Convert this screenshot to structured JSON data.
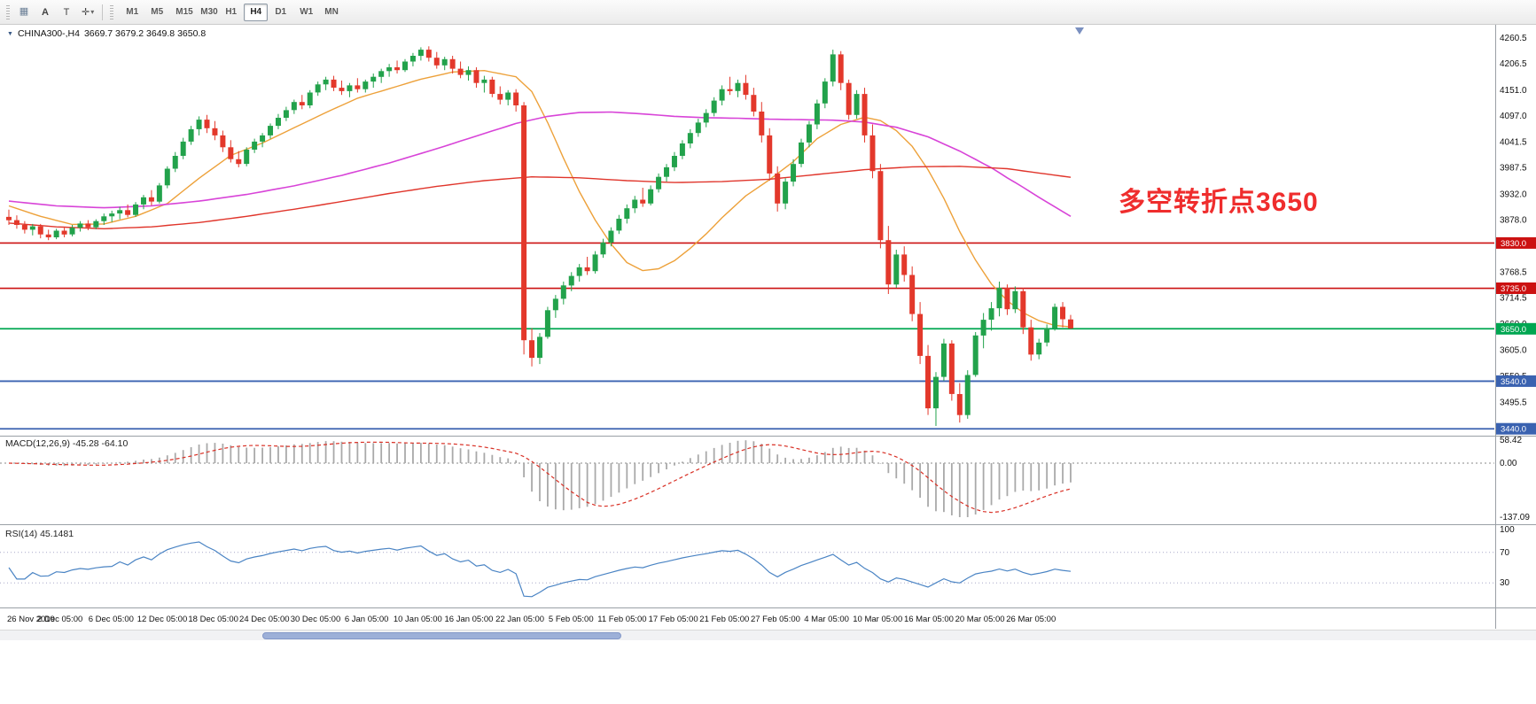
{
  "toolbar": {
    "tools": [
      {
        "label": "A"
      },
      {
        "label": "T"
      }
    ],
    "timeframes": [
      "M1",
      "M5",
      "M15",
      "M30",
      "H1",
      "H4",
      "D1",
      "W1",
      "MN"
    ],
    "active_timeframe": "H4"
  },
  "icons": {
    "triangle_down": "▼",
    "caret_down": "▾",
    "grid": "▦",
    "crosshair": "✛"
  },
  "chart": {
    "symbol": "CHINA300-,H4",
    "ohlc_text": "3669.7 3679.2 3649.8 3650.8",
    "annotation": {
      "text": "多空转折点3650",
      "color": "#ef2d2d"
    }
  },
  "indicators": {
    "macd": {
      "label": "MACD(12,26,9) -45.28 -64.10",
      "params": [
        12,
        26,
        9
      ],
      "macd_value": -45.28,
      "signal_value": -64.1,
      "axis_labels": [
        "58.42",
        "0.00",
        "-137.09"
      ],
      "axis_values": [
        58.42,
        0,
        -137.09
      ],
      "histogram_color": "#a9a9a9",
      "signal_color": "#d93025"
    },
    "rsi": {
      "label": "RSI(14) 45.1481",
      "period": 14,
      "value": 45.1481,
      "levels": [
        70,
        30
      ],
      "axis_labels": [
        "100",
        "70",
        "30"
      ],
      "axis_values": [
        100,
        70,
        30
      ],
      "line_color": "#4a84c4"
    }
  },
  "chart_data": {
    "type": "candlestick",
    "title": "CHINA300-,H4",
    "symbol": "CHINA300-,H4",
    "timeframe": "H4",
    "y_range": [
      3433,
      4277
    ],
    "y_ticks": [
      4260.5,
      4206.5,
      4151.0,
      4097.0,
      4041.5,
      3987.5,
      3932.0,
      3878.0,
      3824.0,
      3768.5,
      3714.5,
      3660.0,
      3605.0,
      3550.5,
      3495.5,
      3441.0
    ],
    "x_labels": [
      "26 Nov 2019",
      "2 Dec 05:00",
      "6 Dec 05:00",
      "12 Dec 05:00",
      "18 Dec 05:00",
      "24 Dec 05:00",
      "30 Dec 05:00",
      "6 Jan 05:00",
      "10 Jan 05:00",
      "16 Jan 05:00",
      "22 Jan 05:00",
      "5 Feb 05:00",
      "11 Feb 05:00",
      "17 Feb 05:00",
      "21 Feb 05:00",
      "27 Feb 05:00",
      "4 Mar 05:00",
      "10 Mar 05:00",
      "16 Mar 05:00",
      "20 Mar 05:00",
      "26 Mar 05:00"
    ],
    "x_label_step_candles": 6.45,
    "up_color": "#22a24b",
    "down_color": "#e3382b",
    "candles": [
      [
        3885,
        3900,
        3868,
        3878
      ],
      [
        3878,
        3888,
        3860,
        3868
      ],
      [
        3868,
        3876,
        3850,
        3858
      ],
      [
        3858,
        3870,
        3846,
        3865
      ],
      [
        3865,
        3870,
        3840,
        3848
      ],
      [
        3848,
        3858,
        3836,
        3842
      ],
      [
        3842,
        3860,
        3838,
        3856
      ],
      [
        3856,
        3862,
        3842,
        3848
      ],
      [
        3848,
        3868,
        3844,
        3862
      ],
      [
        3862,
        3876,
        3854,
        3871
      ],
      [
        3871,
        3878,
        3857,
        3863
      ],
      [
        3863,
        3880,
        3859,
        3876
      ],
      [
        3876,
        3892,
        3868,
        3886
      ],
      [
        3886,
        3898,
        3874,
        3892
      ],
      [
        3892,
        3906,
        3880,
        3899
      ],
      [
        3899,
        3911,
        3884,
        3889
      ],
      [
        3889,
        3916,
        3885,
        3911
      ],
      [
        3911,
        3931,
        3901,
        3926
      ],
      [
        3926,
        3941,
        3909,
        3917
      ],
      [
        3917,
        3956,
        3913,
        3951
      ],
      [
        3951,
        3991,
        3945,
        3986
      ],
      [
        3986,
        4021,
        3979,
        4013
      ],
      [
        4013,
        4051,
        4006,
        4043
      ],
      [
        4043,
        4076,
        4036,
        4069
      ],
      [
        4069,
        4096,
        4056,
        4089
      ],
      [
        4089,
        4099,
        4061,
        4071
      ],
      [
        4071,
        4086,
        4046,
        4056
      ],
      [
        4056,
        4066,
        4021,
        4031
      ],
      [
        4031,
        4046,
        3999,
        4006
      ],
      [
        4006,
        4023,
        3989,
        3996
      ],
      [
        3996,
        4031,
        3991,
        4026
      ],
      [
        4026,
        4049,
        4019,
        4043
      ],
      [
        4043,
        4061,
        4031,
        4056
      ],
      [
        4056,
        4081,
        4049,
        4076
      ],
      [
        4076,
        4101,
        4069,
        4093
      ],
      [
        4093,
        4116,
        4086,
        4109
      ],
      [
        4109,
        4131,
        4101,
        4126
      ],
      [
        4126,
        4141,
        4111,
        4119
      ],
      [
        4119,
        4151,
        4113,
        4146
      ],
      [
        4146,
        4169,
        4139,
        4163
      ],
      [
        4163,
        4179,
        4151,
        4173
      ],
      [
        4173,
        4181,
        4149,
        4156
      ],
      [
        4156,
        4171,
        4141,
        4149
      ],
      [
        4149,
        4166,
        4136,
        4161
      ],
      [
        4161,
        4176,
        4146,
        4153
      ],
      [
        4153,
        4173,
        4146,
        4169
      ],
      [
        4169,
        4186,
        4156,
        4179
      ],
      [
        4179,
        4196,
        4166,
        4191
      ],
      [
        4191,
        4206,
        4179,
        4199
      ],
      [
        4199,
        4213,
        4186,
        4193
      ],
      [
        4193,
        4216,
        4189,
        4211
      ],
      [
        4211,
        4229,
        4201,
        4223
      ],
      [
        4223,
        4241,
        4213,
        4236
      ],
      [
        4236,
        4243,
        4211,
        4219
      ],
      [
        4219,
        4231,
        4196,
        4203
      ],
      [
        4203,
        4221,
        4193,
        4216
      ],
      [
        4216,
        4223,
        4186,
        4196
      ],
      [
        4196,
        4211,
        4176,
        4183
      ],
      [
        4183,
        4201,
        4171,
        4193
      ],
      [
        4193,
        4199,
        4156,
        4166
      ],
      [
        4166,
        4181,
        4146,
        4173
      ],
      [
        4173,
        4179,
        4136,
        4143
      ],
      [
        4143,
        4159,
        4121,
        4131
      ],
      [
        4131,
        4151,
        4119,
        4146
      ],
      [
        4146,
        4153,
        4106,
        4119
      ],
      [
        4119,
        4126,
        3596,
        3626
      ],
      [
        3626,
        3651,
        3571,
        3589
      ],
      [
        3589,
        3641,
        3576,
        3633
      ],
      [
        3633,
        3696,
        3629,
        3689
      ],
      [
        3689,
        3721,
        3673,
        3713
      ],
      [
        3713,
        3749,
        3701,
        3741
      ],
      [
        3741,
        3769,
        3729,
        3761
      ],
      [
        3761,
        3786,
        3749,
        3779
      ],
      [
        3779,
        3801,
        3763,
        3771
      ],
      [
        3771,
        3813,
        3766,
        3806
      ],
      [
        3806,
        3839,
        3799,
        3831
      ],
      [
        3831,
        3863,
        3823,
        3856
      ],
      [
        3856,
        3889,
        3849,
        3881
      ],
      [
        3881,
        3911,
        3871,
        3903
      ],
      [
        3903,
        3929,
        3893,
        3921
      ],
      [
        3921,
        3946,
        3906,
        3913
      ],
      [
        3913,
        3951,
        3909,
        3943
      ],
      [
        3943,
        3976,
        3936,
        3969
      ],
      [
        3969,
        3996,
        3959,
        3989
      ],
      [
        3989,
        4021,
        3981,
        4013
      ],
      [
        4013,
        4046,
        4006,
        4039
      ],
      [
        4039,
        4069,
        4029,
        4061
      ],
      [
        4061,
        4091,
        4053,
        4083
      ],
      [
        4083,
        4111,
        4073,
        4103
      ],
      [
        4103,
        4136,
        4096,
        4129
      ],
      [
        4129,
        4161,
        4119,
        4153
      ],
      [
        4153,
        4179,
        4141,
        4149
      ],
      [
        4149,
        4173,
        4136,
        4166
      ],
      [
        4166,
        4183,
        4131,
        4141
      ],
      [
        4141,
        4156,
        4096,
        4106
      ],
      [
        4106,
        4126,
        4041,
        4056
      ],
      [
        4056,
        4071,
        3961,
        3976
      ],
      [
        3976,
        3991,
        3896,
        3913
      ],
      [
        3913,
        3966,
        3901,
        3959
      ],
      [
        3959,
        4006,
        3949,
        3996
      ],
      [
        3996,
        4049,
        3989,
        4041
      ],
      [
        4041,
        4086,
        4031,
        4079
      ],
      [
        4079,
        4131,
        4069,
        4123
      ],
      [
        4123,
        4176,
        4113,
        4169
      ],
      [
        4169,
        4236,
        4159,
        4226
      ],
      [
        4226,
        4233,
        4151,
        4166
      ],
      [
        4166,
        4173,
        4089,
        4099
      ],
      [
        4099,
        4151,
        4091,
        4143
      ],
      [
        4143,
        4156,
        4041,
        4056
      ],
      [
        4056,
        4079,
        3966,
        3981
      ],
      [
        3981,
        3996,
        3819,
        3836
      ],
      [
        3836,
        3866,
        3723,
        3743
      ],
      [
        3743,
        3816,
        3736,
        3806
      ],
      [
        3806,
        3823,
        3749,
        3763
      ],
      [
        3763,
        3781,
        3666,
        3681
      ],
      [
        3681,
        3706,
        3576,
        3593
      ],
      [
        3593,
        3616,
        3469,
        3483
      ],
      [
        3483,
        3559,
        3446,
        3549
      ],
      [
        3549,
        3629,
        3541,
        3619
      ],
      [
        3619,
        3626,
        3499,
        3513
      ],
      [
        3513,
        3536,
        3453,
        3469
      ],
      [
        3469,
        3563,
        3461,
        3553
      ],
      [
        3553,
        3643,
        3549,
        3636
      ],
      [
        3636,
        3683,
        3609,
        3669
      ],
      [
        3669,
        3706,
        3646,
        3693
      ],
      [
        3693,
        3749,
        3676,
        3736
      ],
      [
        3736,
        3743,
        3679,
        3691
      ],
      [
        3691,
        3739,
        3683,
        3729
      ],
      [
        3729,
        3736,
        3639,
        3653
      ],
      [
        3653,
        3669,
        3583,
        3596
      ],
      [
        3596,
        3629,
        3586,
        3621
      ],
      [
        3621,
        3659,
        3613,
        3651
      ],
      [
        3651,
        3703,
        3646,
        3696
      ],
      [
        3696,
        3706,
        3653,
        3670
      ],
      [
        3669.7,
        3679.2,
        3649.8,
        3650.8
      ]
    ],
    "moving_averages": [
      {
        "name": "fast-orange",
        "color": "#eda13a",
        "width": 1.4,
        "anchors": [
          [
            0,
            3908
          ],
          [
            4,
            3886
          ],
          [
            8,
            3869
          ],
          [
            12,
            3870
          ],
          [
            16,
            3886
          ],
          [
            20,
            3913
          ],
          [
            24,
            3966
          ],
          [
            28,
            4014
          ],
          [
            32,
            4040
          ],
          [
            36,
            4072
          ],
          [
            40,
            4104
          ],
          [
            44,
            4134
          ],
          [
            48,
            4154
          ],
          [
            52,
            4174
          ],
          [
            56,
            4189
          ],
          [
            60,
            4192
          ],
          [
            64,
            4179
          ],
          [
            66,
            4148
          ],
          [
            68,
            4083
          ],
          [
            70,
            4008
          ],
          [
            72,
            3938
          ],
          [
            74,
            3878
          ],
          [
            76,
            3828
          ],
          [
            78,
            3789
          ],
          [
            80,
            3772
          ],
          [
            82,
            3776
          ],
          [
            84,
            3793
          ],
          [
            86,
            3819
          ],
          [
            88,
            3849
          ],
          [
            90,
            3883
          ],
          [
            93,
            3929
          ],
          [
            96,
            3963
          ],
          [
            99,
            4001
          ],
          [
            102,
            4049
          ],
          [
            105,
            4079
          ],
          [
            108,
            4094
          ],
          [
            110,
            4087
          ],
          [
            112,
            4066
          ],
          [
            114,
            4033
          ],
          [
            116,
            3984
          ],
          [
            118,
            3924
          ],
          [
            120,
            3854
          ],
          [
            122,
            3794
          ],
          [
            124,
            3744
          ],
          [
            126,
            3709
          ],
          [
            128,
            3684
          ],
          [
            130,
            3667
          ],
          [
            132,
            3657
          ],
          [
            134,
            3654
          ]
        ]
      },
      {
        "name": "slow-magenta",
        "color": "#d844d8",
        "width": 1.6,
        "anchors": [
          [
            0,
            3918
          ],
          [
            6,
            3908
          ],
          [
            12,
            3904
          ],
          [
            18,
            3908
          ],
          [
            24,
            3918
          ],
          [
            30,
            3932
          ],
          [
            36,
            3950
          ],
          [
            42,
            3972
          ],
          [
            48,
            3998
          ],
          [
            54,
            4028
          ],
          [
            60,
            4060
          ],
          [
            64,
            4081
          ],
          [
            68,
            4096
          ],
          [
            72,
            4104
          ],
          [
            76,
            4105
          ],
          [
            80,
            4101
          ],
          [
            84,
            4096
          ],
          [
            88,
            4093
          ],
          [
            92,
            4092
          ],
          [
            96,
            4090
          ],
          [
            100,
            4089
          ],
          [
            104,
            4088
          ],
          [
            108,
            4084
          ],
          [
            112,
            4073
          ],
          [
            116,
            4053
          ],
          [
            120,
            4023
          ],
          [
            124,
            3988
          ],
          [
            126,
            3967
          ],
          [
            128,
            3947
          ],
          [
            130,
            3926
          ],
          [
            132,
            3906
          ],
          [
            134,
            3886
          ]
        ]
      },
      {
        "name": "long-red",
        "color": "#e0352b",
        "width": 1.4,
        "anchors": [
          [
            0,
            3872
          ],
          [
            6,
            3864
          ],
          [
            12,
            3860
          ],
          [
            18,
            3864
          ],
          [
            24,
            3873
          ],
          [
            30,
            3886
          ],
          [
            36,
            3901
          ],
          [
            42,
            3917
          ],
          [
            48,
            3934
          ],
          [
            54,
            3949
          ],
          [
            60,
            3961
          ],
          [
            66,
            3969
          ],
          [
            72,
            3967
          ],
          [
            78,
            3961
          ],
          [
            84,
            3957
          ],
          [
            90,
            3959
          ],
          [
            96,
            3964
          ],
          [
            102,
            3974
          ],
          [
            108,
            3984
          ],
          [
            114,
            3990
          ],
          [
            120,
            3991
          ],
          [
            126,
            3986
          ],
          [
            130,
            3977
          ],
          [
            134,
            3968
          ]
        ]
      }
    ],
    "levels": [
      {
        "label": "3830.0",
        "value": 3830,
        "color": "#cc1111",
        "width": 1.6
      },
      {
        "label": "3735.0",
        "value": 3735,
        "color": "#cc1111",
        "width": 1.6
      },
      {
        "label": "3650.0",
        "value": 3650,
        "color": "#00a651",
        "width": 1.8
      },
      {
        "label": "3540.0",
        "value": 3540,
        "color": "#3a62b0",
        "width": 1.8
      },
      {
        "label": "3440.0",
        "value": 3440,
        "color": "#3a62b0",
        "width": 1.8
      }
    ]
  }
}
